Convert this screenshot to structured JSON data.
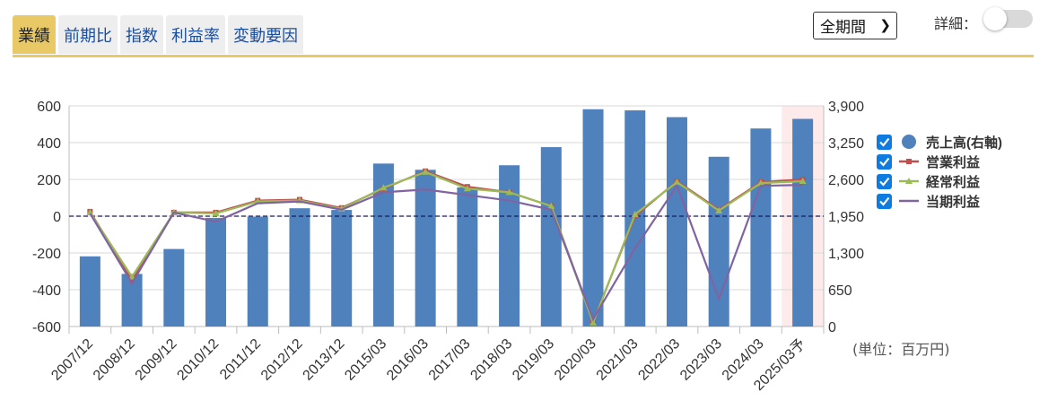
{
  "tabs": [
    {
      "label": "業績",
      "active": true
    },
    {
      "label": "前期比",
      "active": false
    },
    {
      "label": "指数",
      "active": false
    },
    {
      "label": "利益率",
      "active": false
    },
    {
      "label": "変動要因",
      "active": false
    }
  ],
  "period_select": {
    "value": "全期間"
  },
  "detail_toggle": {
    "label": "詳細：",
    "on": false
  },
  "unit_note": "(単位：百万円)",
  "chart_data": {
    "type": "bar+line",
    "categories": [
      "2007/12",
      "2008/12",
      "2009/12",
      "2010/12",
      "2011/12",
      "2012/12",
      "2013/12",
      "2015/03",
      "2016/03",
      "2017/03",
      "2018/03",
      "2019/03",
      "2020/03",
      "2021/03",
      "2022/03",
      "2023/03",
      "2024/03",
      "2025/03予"
    ],
    "forecast_index": 17,
    "y_left": {
      "min": -600,
      "max": 600,
      "ticks": [
        -600,
        -400,
        -200,
        0,
        200,
        400,
        600
      ],
      "tick_labels": [
        "-600",
        "-400",
        "-200",
        "0",
        "200",
        "400",
        "600"
      ]
    },
    "y_right": {
      "min": 0,
      "max": 3900,
      "ticks": [
        0,
        650,
        1300,
        1950,
        2600,
        3250,
        3900
      ],
      "tick_labels": [
        "0",
        "650",
        "1,300",
        "1,950",
        "2,600",
        "3,250",
        "3,900"
      ]
    },
    "bar_series": {
      "name": "売上高(右軸)",
      "axis": "right",
      "color": "#4f81bd",
      "values": [
        1240,
        930,
        1370,
        1920,
        1940,
        2090,
        2060,
        2880,
        2770,
        2460,
        2850,
        3170,
        3840,
        3820,
        3700,
        3000,
        3500,
        3670
      ]
    },
    "line_series": [
      {
        "name": "営業利益",
        "axis": "left",
        "color": "#c0504d",
        "marker": "square",
        "values": [
          25,
          -345,
          20,
          20,
          85,
          90,
          45,
          150,
          245,
          160,
          130,
          55,
          -575,
          0,
          190,
          35,
          185,
          200
        ]
      },
      {
        "name": "経常利益",
        "axis": "left",
        "color": "#9bbb59",
        "marker": "triangle",
        "values": [
          20,
          -330,
          20,
          15,
          80,
          85,
          40,
          155,
          240,
          150,
          130,
          55,
          -580,
          10,
          185,
          30,
          180,
          190
        ]
      },
      {
        "name": "当期利益",
        "axis": "left",
        "color": "#8064a2",
        "marker": "none",
        "values": [
          15,
          -365,
          20,
          -30,
          70,
          80,
          35,
          130,
          145,
          115,
          85,
          35,
          -560,
          -175,
          165,
          -450,
          165,
          170
        ]
      }
    ],
    "zero_line": {
      "style": "dashed",
      "color": "#1a1a5e"
    },
    "legend": {
      "position": "right",
      "items": [
        {
          "label": "売上高(右軸)",
          "checked": true
        },
        {
          "label": "営業利益",
          "checked": true
        },
        {
          "label": "経常利益",
          "checked": true
        },
        {
          "label": "当期利益",
          "checked": true
        }
      ]
    },
    "grid": "horizontal"
  }
}
